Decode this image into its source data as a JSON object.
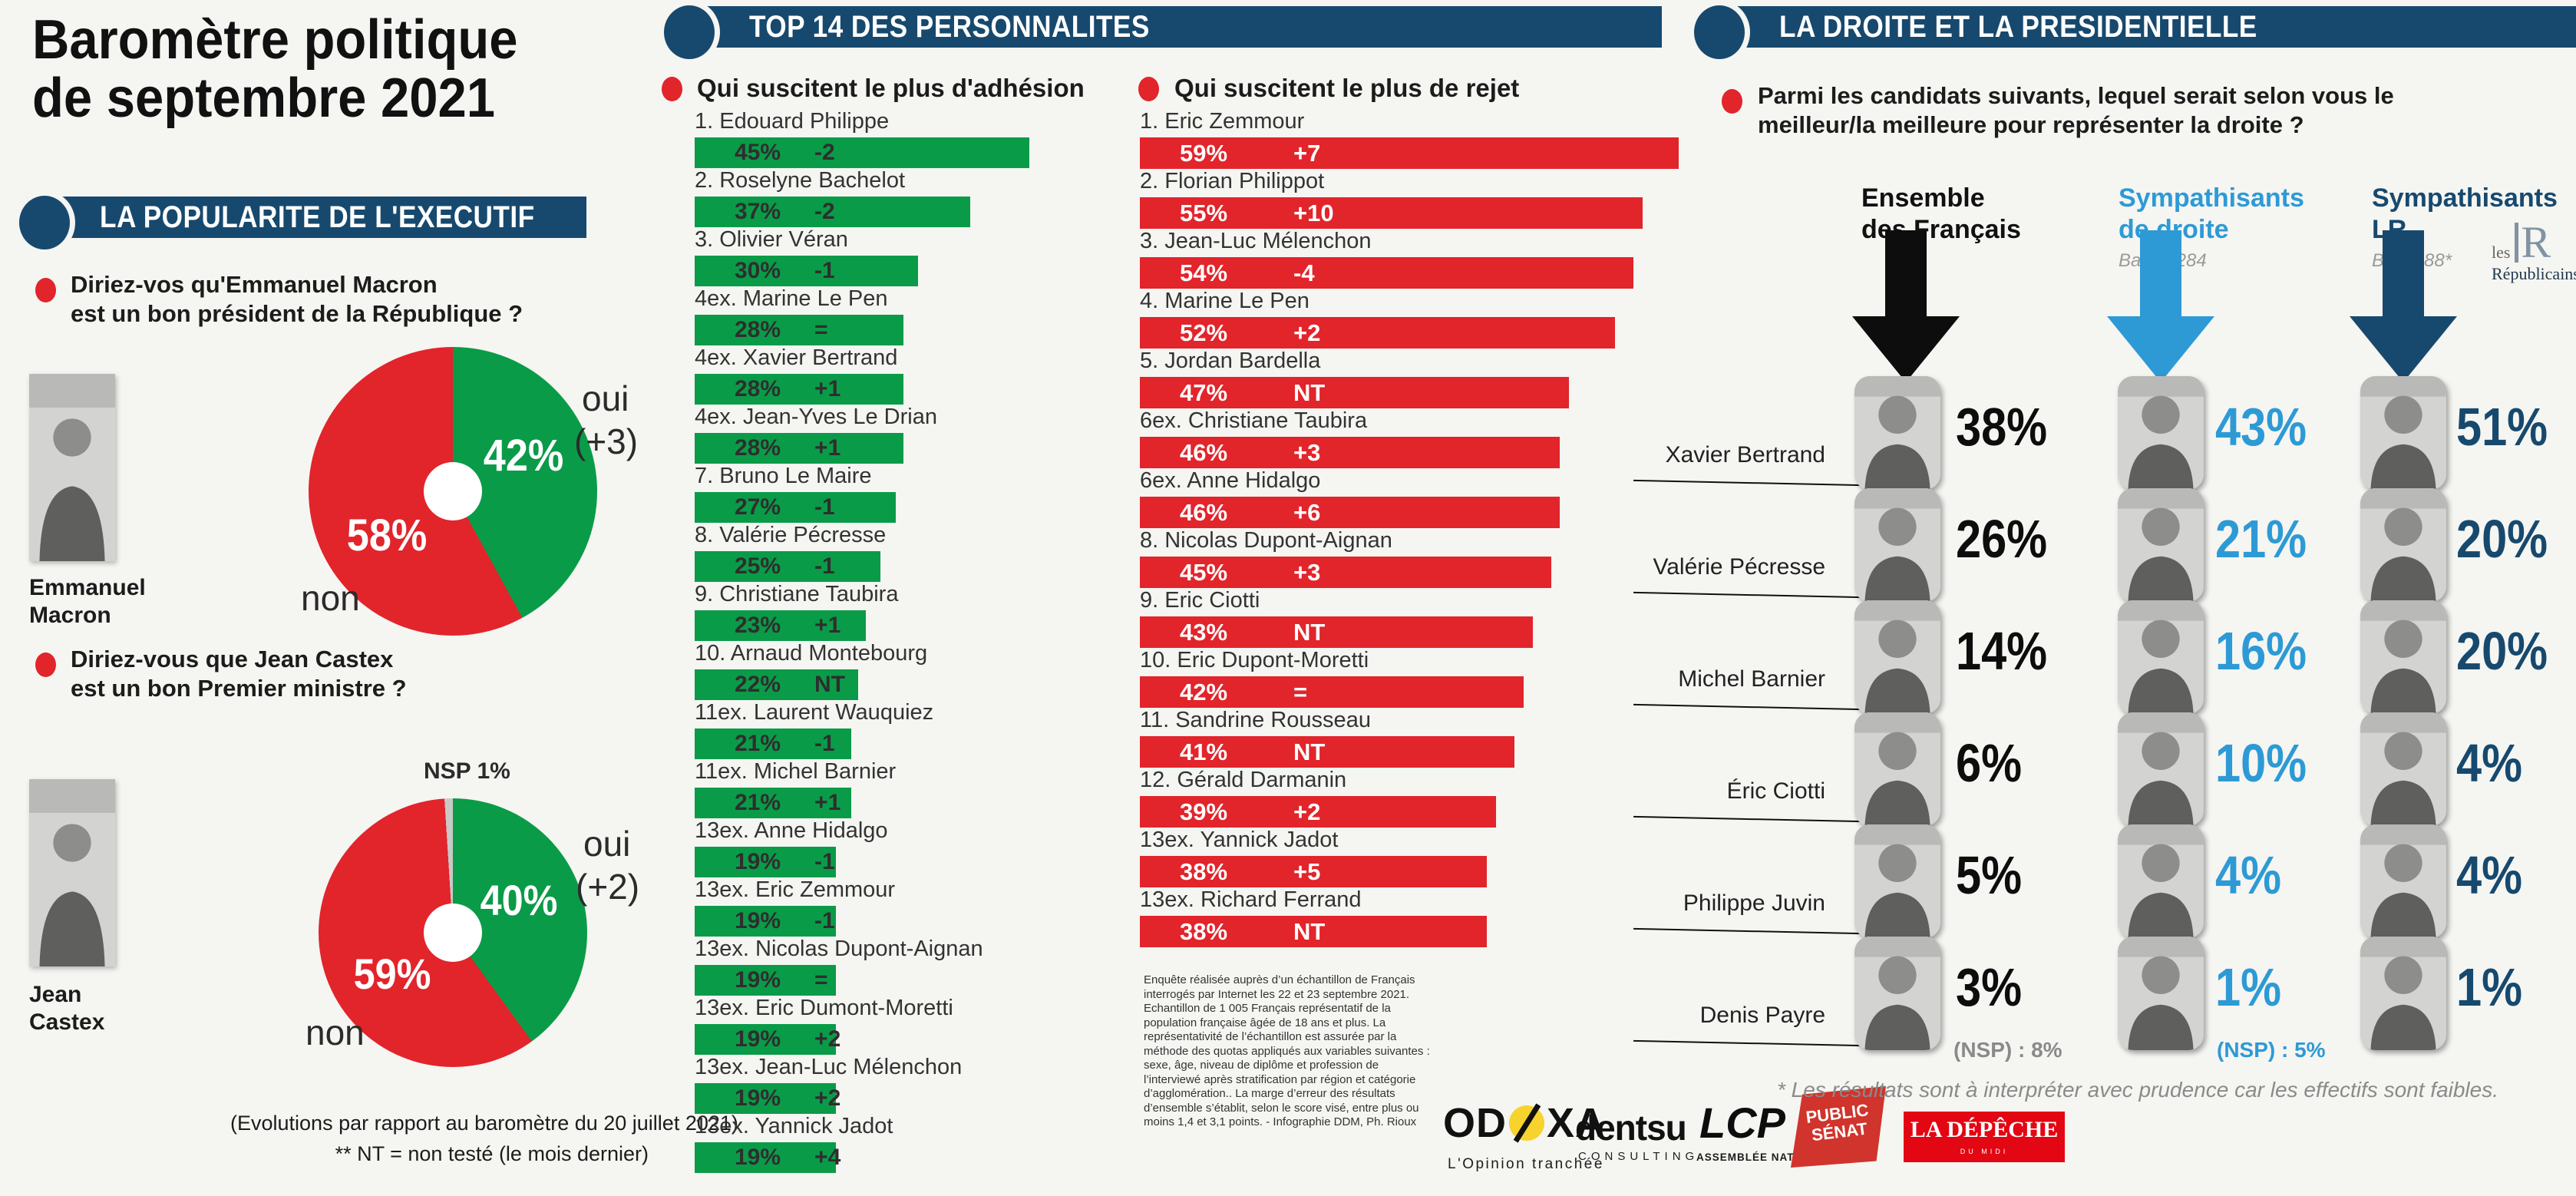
{
  "colors": {
    "navy": "#17496e",
    "red": "#e2242b",
    "green": "#0a9b48",
    "light_blue": "#2d9ad6",
    "gray_slice": "#c9c9c5"
  },
  "left": {
    "title_line1": "Baromètre politique",
    "title_line2": "de septembre 2021",
    "section_header": "LA POPULARITE DE L'EXECUTIF",
    "q1_line1": "Diriez-vos qu'Emmanuel Macron",
    "q1_line2": "est un bon président de la République  ?",
    "macron_photo_label_line1": "Emmanuel",
    "macron_photo_label_line2": "Macron",
    "macron_oui_label": "oui",
    "macron_oui_delta": "(+3)",
    "macron_oui_pct": "42%",
    "macron_non_pct": "58%",
    "macron_non_label": "non",
    "q2_line1": "Diriez-vous que Jean Castex",
    "q2_line2": "est un bon Premier ministre ?",
    "castex_photo_label_line1": "Jean",
    "castex_photo_label_line2": "Castex",
    "castex_nsp_label": "NSP 1%",
    "castex_oui_label": "oui",
    "castex_oui_delta": "(+2)",
    "castex_oui_pct": "40%",
    "castex_non_pct": "59%",
    "castex_non_label": "non",
    "footnote_line1": "(Evolutions par rapport au baromètre du 20 juillet 2021)",
    "footnote_line2": "** NT = non testé (le mois dernier)"
  },
  "top14": {
    "header": "TOP 14 DES PERSONNALITES",
    "adhesion_title": "Qui suscitent le plus d'adhésion",
    "rejet_title": "Qui suscitent le plus de rejet",
    "methodology": "Enquête réalisée auprès d’un échantillon de Français interrogés par Internet les 22 et 23 septembre 2021. Echantillon de 1 005 Français représentatif de la population française âgée de 18 ans et plus. La représentativité de l’échantillon est assurée par la méthode des quotas appliqués aux variables suivantes : sexe, âge, niveau de diplôme et profession de l’interviewé après stratification par région et catégorie d’agglomération.. La marge d’erreur des résultats d’ensemble s’établit, selon le score visé, entre plus ou moins 1,4 et 3,1 points. - Infographie DDM, Ph. Rioux"
  },
  "droite": {
    "header": "LA DROITE ET LA PRESIDENTIELLE",
    "q_line1": "Parmi les candidats suivants, lequel serait selon vous le",
    "q_line2": "meilleur/la meilleure pour représenter la droite  ?",
    "col1_line1": "Ensemble",
    "col1_line2": "des Français",
    "col2_line1": "Sympathisants",
    "col2_line2": "de droite",
    "col2_base": "Base : 284",
    "col3_line1": "Sympathisants",
    "col3_line2": "LR",
    "col3_base": "Base :88*",
    "lr_les": "les",
    "lr_r": "R",
    "lr_name": "Républicains",
    "nsp_col1": "(NSP) : 8%",
    "nsp_col2": "(NSP) : 5%",
    "footnote": "* Les résultats sont à interpréter avec prudence car les effectifs sont faibles."
  },
  "logos": {
    "odoxa_prefix": "OD",
    "odoxa_suffix": "XA",
    "odoxa_tagline": "L'Opinion tranchée",
    "dentsu": "dentsu",
    "dentsu_sub": "CONSULTING",
    "lcp": "LCP",
    "lcp_sub": "ASSEMBLÉE NATIONALE",
    "public_senat_line1": "PUBLIC",
    "public_senat_line2": "SÉNAT",
    "depeche": "LA DÉPÊCHE",
    "depeche_sub": "DU MIDI"
  },
  "chart_data": [
    {
      "id": "macron_pie",
      "type": "pie",
      "title": "Diriez-vos qu'Emmanuel Macron est un bon président de la République ?",
      "labels": [
        "oui",
        "non"
      ],
      "values": [
        42,
        58
      ],
      "deltas": [
        "+3",
        null
      ],
      "colors": [
        "#0a9b48",
        "#e2242b"
      ],
      "start_angle_deg": 0,
      "clockwise": true,
      "donut_hole": true
    },
    {
      "id": "castex_pie",
      "type": "pie",
      "title": "Diriez-vous que Jean Castex est un bon Premier ministre ?",
      "labels": [
        "oui",
        "non",
        "NSP"
      ],
      "values": [
        40,
        59,
        1
      ],
      "deltas": [
        "+2",
        null,
        null
      ],
      "colors": [
        "#0a9b48",
        "#e2242b",
        "#c9c9c5"
      ],
      "start_angle_deg": 0,
      "clockwise": true,
      "donut_hole": true
    },
    {
      "id": "adhesion",
      "type": "bar",
      "title": "Qui suscitent le plus d'adhésion",
      "color": "#0a9b48",
      "unit": "%",
      "xlim": [
        0,
        47
      ],
      "items": [
        {
          "label": "1. Edouard Philippe",
          "value": 45,
          "delta": "-2"
        },
        {
          "label": "2. Roselyne Bachelot",
          "value": 37,
          "delta": "-2"
        },
        {
          "label": "3. Olivier Véran",
          "value": 30,
          "delta": "-1"
        },
        {
          "label": "4ex. Marine Le Pen",
          "value": 28,
          "delta": "="
        },
        {
          "label": "4ex. Xavier Bertrand",
          "value": 28,
          "delta": "+1"
        },
        {
          "label": "4ex. Jean-Yves Le Drian",
          "value": 28,
          "delta": "+1"
        },
        {
          "label": "7. Bruno Le Maire",
          "value": 27,
          "delta": "-1"
        },
        {
          "label": "8. Valérie Pécresse",
          "value": 25,
          "delta": "-1"
        },
        {
          "label": "9. Christiane Taubira",
          "value": 23,
          "delta": "+1"
        },
        {
          "label": "10. Arnaud Montebourg",
          "value": 22,
          "delta": "NT"
        },
        {
          "label": "11ex. Laurent Wauquiez",
          "value": 21,
          "delta": "-1"
        },
        {
          "label": "11ex. Michel Barnier",
          "value": 21,
          "delta": "+1"
        },
        {
          "label": "13ex. Anne Hidalgo",
          "value": 19,
          "delta": "-1"
        },
        {
          "label": "13ex. Eric Zemmour",
          "value": 19,
          "delta": "-1"
        },
        {
          "label": "13ex. Nicolas Dupont-Aignan",
          "value": 19,
          "delta": "="
        },
        {
          "label": "13ex. Eric Dumont-Moretti",
          "value": 19,
          "delta": "+2"
        },
        {
          "label": "13ex. Jean-Luc Mélenchon",
          "value": 19,
          "delta": "+2"
        },
        {
          "label": "13ex. Yannick Jadot",
          "value": 19,
          "delta": "+4"
        }
      ]
    },
    {
      "id": "rejet",
      "type": "bar",
      "title": "Qui suscitent le plus de rejet",
      "color": "#e2242b",
      "unit": "%",
      "xlim": [
        0,
        62
      ],
      "items": [
        {
          "label": "1. Eric Zemmour",
          "value": 59,
          "delta": "+7"
        },
        {
          "label": "2. Florian Philippot",
          "value": 55,
          "delta": "+10"
        },
        {
          "label": "3. Jean-Luc Mélenchon",
          "value": 54,
          "delta": "-4"
        },
        {
          "label": "4. Marine Le Pen",
          "value": 52,
          "delta": "+2"
        },
        {
          "label": "5. Jordan Bardella",
          "value": 47,
          "delta": "NT"
        },
        {
          "label": "6ex. Christiane Taubira",
          "value": 46,
          "delta": "+3"
        },
        {
          "label": "6ex. Anne Hidalgo",
          "value": 46,
          "delta": "+6"
        },
        {
          "label": "8. Nicolas Dupont-Aignan",
          "value": 45,
          "delta": "+3"
        },
        {
          "label": "9. Eric Ciotti",
          "value": 43,
          "delta": "NT"
        },
        {
          "label": "10. Eric Dupont-Moretti",
          "value": 42,
          "delta": "="
        },
        {
          "label": "11. Sandrine Rousseau",
          "value": 41,
          "delta": "NT"
        },
        {
          "label": "12. Gérald Darmanin",
          "value": 39,
          "delta": "+2"
        },
        {
          "label": "13ex. Yannick Jadot",
          "value": 38,
          "delta": "+5"
        },
        {
          "label": "13ex. Richard Ferrand",
          "value": 38,
          "delta": "NT"
        }
      ]
    },
    {
      "id": "droite_table",
      "type": "table",
      "title": "Parmi les candidats suivants, lequel serait selon vous le meilleur/la meilleure pour représenter la droite ?",
      "columns": [
        "Ensemble des Français",
        "Sympathisants de droite",
        "Sympathisants LR"
      ],
      "bases": [
        null,
        "284",
        "88*"
      ],
      "rows": [
        {
          "name": "Xavier Bertrand",
          "values": [
            "38%",
            "43%",
            "51%"
          ]
        },
        {
          "name": "Valérie Pécresse",
          "values": [
            "26%",
            "21%",
            "20%"
          ]
        },
        {
          "name": "Michel Barnier",
          "values": [
            "14%",
            "16%",
            "20%"
          ]
        },
        {
          "name": "Éric Ciotti",
          "values": [
            "6%",
            "10%",
            "4%"
          ]
        },
        {
          "name": "Philippe Juvin",
          "values": [
            "5%",
            "4%",
            "4%"
          ]
        },
        {
          "name": "Denis Payre",
          "values": [
            "3%",
            "1%",
            "1%"
          ]
        }
      ],
      "nsp": [
        "8%",
        "5%",
        null
      ]
    }
  ]
}
